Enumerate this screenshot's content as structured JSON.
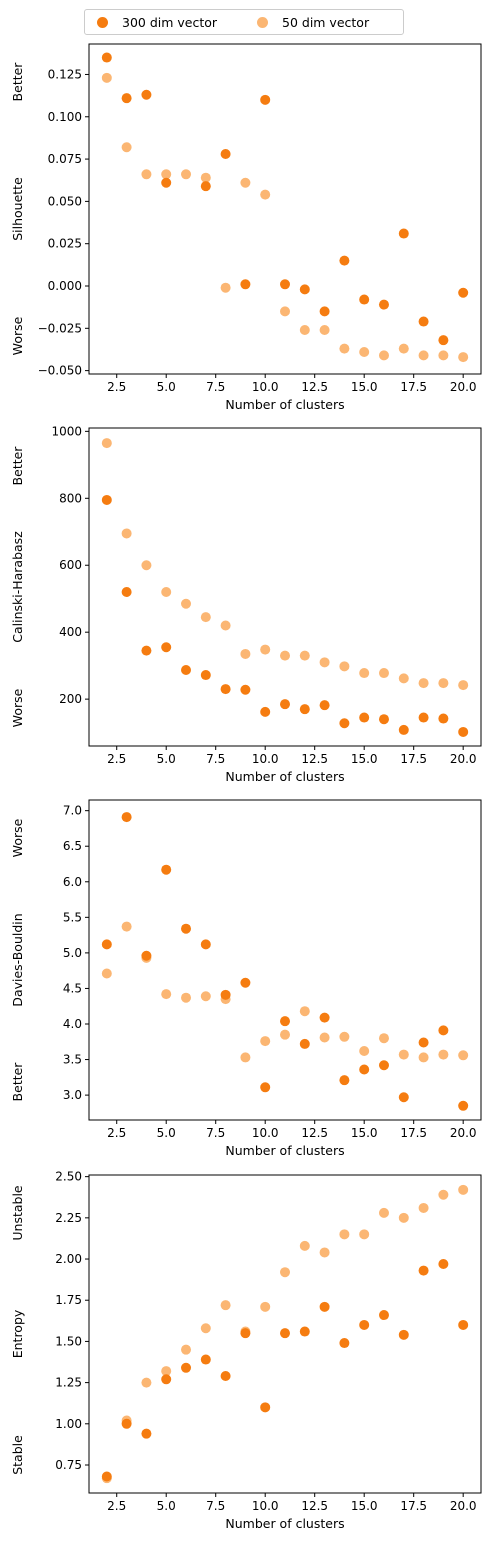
{
  "legend": [
    {
      "label": "300 dim vector",
      "color": "#f57c10"
    },
    {
      "label": "50 dim vector",
      "color": "#fbb673"
    }
  ],
  "chart_data": [
    {
      "type": "scatter",
      "xlabel": "Number of clusters",
      "ylabel": "Silhouette",
      "top_note": "Better",
      "bottom_note": "Worse",
      "xlim": [
        1.1,
        20.9
      ],
      "ylim": [
        -0.052,
        0.143
      ],
      "xticks": [
        2.5,
        5.0,
        7.5,
        10.0,
        12.5,
        15.0,
        17.5,
        20.0
      ],
      "xtick_labels": [
        "2.5",
        "5.0",
        "7.5",
        "10.0",
        "12.5",
        "15.0",
        "17.5",
        "20.0"
      ],
      "yticks": [
        -0.05,
        -0.025,
        0.0,
        0.025,
        0.05,
        0.075,
        0.1,
        0.125
      ],
      "ytick_labels": [
        "−0.050",
        "−0.025",
        "0.000",
        "0.025",
        "0.050",
        "0.075",
        "0.100",
        "0.125"
      ],
      "grid": false,
      "x": [
        2,
        3,
        4,
        5,
        6,
        7,
        8,
        9,
        10,
        11,
        12,
        13,
        14,
        15,
        16,
        17,
        18,
        19,
        20
      ],
      "series": [
        {
          "name": "50 dim vector",
          "color": "#fbb673",
          "values": [
            0.123,
            0.082,
            0.066,
            0.066,
            0.066,
            0.064,
            -0.001,
            0.061,
            0.054,
            -0.015,
            -0.026,
            -0.026,
            -0.037,
            -0.039,
            -0.041,
            -0.037,
            -0.041,
            -0.041,
            -0.042
          ]
        },
        {
          "name": "300 dim vector",
          "color": "#f57c10",
          "values": [
            0.135,
            0.111,
            0.113,
            0.061,
            null,
            0.059,
            0.078,
            0.001,
            0.11,
            0.001,
            -0.002,
            -0.015,
            0.015,
            -0.008,
            -0.011,
            0.031,
            -0.021,
            -0.032,
            -0.004
          ]
        }
      ]
    },
    {
      "type": "scatter",
      "xlabel": "Number of clusters",
      "ylabel": "Calinski-Harabasz",
      "top_note": "Better",
      "bottom_note": "Worse",
      "xlim": [
        1.1,
        20.9
      ],
      "ylim": [
        60,
        1010
      ],
      "xticks": [
        2.5,
        5.0,
        7.5,
        10.0,
        12.5,
        15.0,
        17.5,
        20.0
      ],
      "xtick_labels": [
        "2.5",
        "5.0",
        "7.5",
        "10.0",
        "12.5",
        "15.0",
        "17.5",
        "20.0"
      ],
      "yticks": [
        200,
        400,
        600,
        800,
        1000
      ],
      "ytick_labels": [
        "200",
        "400",
        "600",
        "800",
        "1000"
      ],
      "grid": false,
      "x": [
        2,
        3,
        4,
        5,
        6,
        7,
        8,
        9,
        10,
        11,
        12,
        13,
        14,
        15,
        16,
        17,
        18,
        19,
        20
      ],
      "series": [
        {
          "name": "50 dim vector",
          "color": "#fbb673",
          "values": [
            965,
            695,
            600,
            520,
            485,
            445,
            420,
            335,
            348,
            330,
            330,
            310,
            298,
            278,
            278,
            262,
            248,
            248,
            242
          ]
        },
        {
          "name": "300 dim vector",
          "color": "#f57c10",
          "values": [
            795,
            520,
            345,
            355,
            287,
            272,
            230,
            228,
            162,
            185,
            170,
            182,
            128,
            145,
            140,
            108,
            145,
            142,
            102
          ]
        }
      ]
    },
    {
      "type": "scatter",
      "xlabel": "Number of clusters",
      "ylabel": "Davies-Bouldin",
      "top_note": "Worse",
      "bottom_note": "Better",
      "xlim": [
        1.1,
        20.9
      ],
      "ylim": [
        2.65,
        7.15
      ],
      "xticks": [
        2.5,
        5.0,
        7.5,
        10.0,
        12.5,
        15.0,
        17.5,
        20.0
      ],
      "xtick_labels": [
        "2.5",
        "5.0",
        "7.5",
        "10.0",
        "12.5",
        "15.0",
        "17.5",
        "20.0"
      ],
      "yticks": [
        3.0,
        3.5,
        4.0,
        4.5,
        5.0,
        5.5,
        6.0,
        6.5,
        7.0
      ],
      "ytick_labels": [
        "3.0",
        "3.5",
        "4.0",
        "4.5",
        "5.0",
        "5.5",
        "6.0",
        "6.5",
        "7.0"
      ],
      "grid": false,
      "x": [
        2,
        3,
        4,
        5,
        6,
        7,
        8,
        9,
        10,
        11,
        12,
        13,
        14,
        15,
        16,
        17,
        18,
        19,
        20
      ],
      "series": [
        {
          "name": "50 dim vector",
          "color": "#fbb673",
          "values": [
            4.71,
            5.37,
            4.93,
            4.42,
            4.37,
            4.39,
            4.35,
            3.53,
            3.76,
            3.85,
            4.18,
            3.81,
            3.82,
            3.62,
            3.8,
            3.57,
            3.53,
            3.57,
            3.56
          ]
        },
        {
          "name": "300 dim vector",
          "color": "#f57c10",
          "values": [
            5.12,
            6.91,
            4.96,
            6.17,
            5.34,
            5.12,
            4.41,
            4.58,
            3.11,
            4.04,
            3.72,
            4.09,
            3.21,
            3.36,
            3.42,
            2.97,
            3.74,
            3.91,
            2.85
          ]
        }
      ]
    },
    {
      "type": "scatter",
      "xlabel": "Number of clusters",
      "ylabel": "Entropy",
      "top_note": "Unstable",
      "bottom_note": "Stable",
      "xlim": [
        1.1,
        20.9
      ],
      "ylim": [
        0.58,
        2.51
      ],
      "xticks": [
        2.5,
        5.0,
        7.5,
        10.0,
        12.5,
        15.0,
        17.5,
        20.0
      ],
      "xtick_labels": [
        "2.5",
        "5.0",
        "7.5",
        "10.0",
        "12.5",
        "15.0",
        "17.5",
        "20.0"
      ],
      "yticks": [
        0.75,
        1.0,
        1.25,
        1.5,
        1.75,
        2.0,
        2.25,
        2.5
      ],
      "ytick_labels": [
        "0.75",
        "1.00",
        "1.25",
        "1.50",
        "1.75",
        "2.00",
        "2.25",
        "2.50"
      ],
      "grid": false,
      "x": [
        2,
        3,
        4,
        5,
        6,
        7,
        8,
        9,
        10,
        11,
        12,
        13,
        14,
        15,
        16,
        17,
        18,
        19,
        20
      ],
      "series": [
        {
          "name": "50 dim vector",
          "color": "#fbb673",
          "values": [
            0.67,
            1.02,
            1.25,
            1.32,
            1.45,
            1.58,
            1.72,
            1.56,
            1.71,
            1.92,
            2.08,
            2.04,
            2.15,
            2.15,
            2.28,
            2.25,
            2.31,
            2.39,
            2.42
          ]
        },
        {
          "name": "300 dim vector",
          "color": "#f57c10",
          "values": [
            0.68,
            1.0,
            0.94,
            1.27,
            1.34,
            1.39,
            1.29,
            1.55,
            1.1,
            1.55,
            1.56,
            1.71,
            1.49,
            1.6,
            1.66,
            1.54,
            1.93,
            1.97,
            1.6
          ]
        }
      ]
    }
  ]
}
